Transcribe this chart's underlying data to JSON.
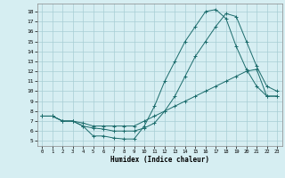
{
  "xlabel": "Humidex (Indice chaleur)",
  "bg_color": "#d6eef2",
  "grid_color": "#a8cdd4",
  "line_color": "#1a6b6b",
  "xlim": [
    -0.5,
    23.5
  ],
  "ylim": [
    4.5,
    18.8
  ],
  "yticks": [
    5,
    6,
    7,
    8,
    9,
    10,
    11,
    12,
    13,
    14,
    15,
    16,
    17,
    18
  ],
  "xticks": [
    0,
    1,
    2,
    3,
    4,
    5,
    6,
    7,
    8,
    9,
    10,
    11,
    12,
    13,
    14,
    15,
    16,
    17,
    18,
    19,
    20,
    21,
    22,
    23
  ],
  "series": [
    {
      "x": [
        0,
        1,
        2,
        3,
        4,
        5,
        6,
        7,
        8,
        9,
        10,
        11,
        12,
        13,
        14,
        15,
        16,
        17,
        18,
        19,
        20,
        21,
        22,
        23
      ],
      "y": [
        7.5,
        7.5,
        7.0,
        7.0,
        6.5,
        5.5,
        5.5,
        5.3,
        5.2,
        5.2,
        6.5,
        8.5,
        11.0,
        13.0,
        15.0,
        16.5,
        18.0,
        18.2,
        17.3,
        14.5,
        12.2,
        10.5,
        9.5,
        9.5
      ]
    },
    {
      "x": [
        0,
        1,
        2,
        3,
        4,
        5,
        6,
        7,
        8,
        9,
        10,
        11,
        12,
        13,
        14,
        15,
        16,
        17,
        18,
        19,
        20,
        21,
        22,
        23
      ],
      "y": [
        7.5,
        7.5,
        7.0,
        7.0,
        6.5,
        6.3,
        6.2,
        6.0,
        6.0,
        6.0,
        6.3,
        6.8,
        8.0,
        9.5,
        11.5,
        13.5,
        15.0,
        16.5,
        17.8,
        17.5,
        15.0,
        12.5,
        10.5,
        10.0
      ]
    },
    {
      "x": [
        0,
        1,
        2,
        3,
        4,
        5,
        6,
        7,
        8,
        9,
        10,
        11,
        12,
        13,
        14,
        15,
        16,
        17,
        18,
        19,
        20,
        21,
        22,
        23
      ],
      "y": [
        7.5,
        7.5,
        7.0,
        7.0,
        6.8,
        6.5,
        6.5,
        6.5,
        6.5,
        6.5,
        7.0,
        7.5,
        8.0,
        8.5,
        9.0,
        9.5,
        10.0,
        10.5,
        11.0,
        11.5,
        12.0,
        12.2,
        9.5,
        9.5
      ]
    }
  ]
}
